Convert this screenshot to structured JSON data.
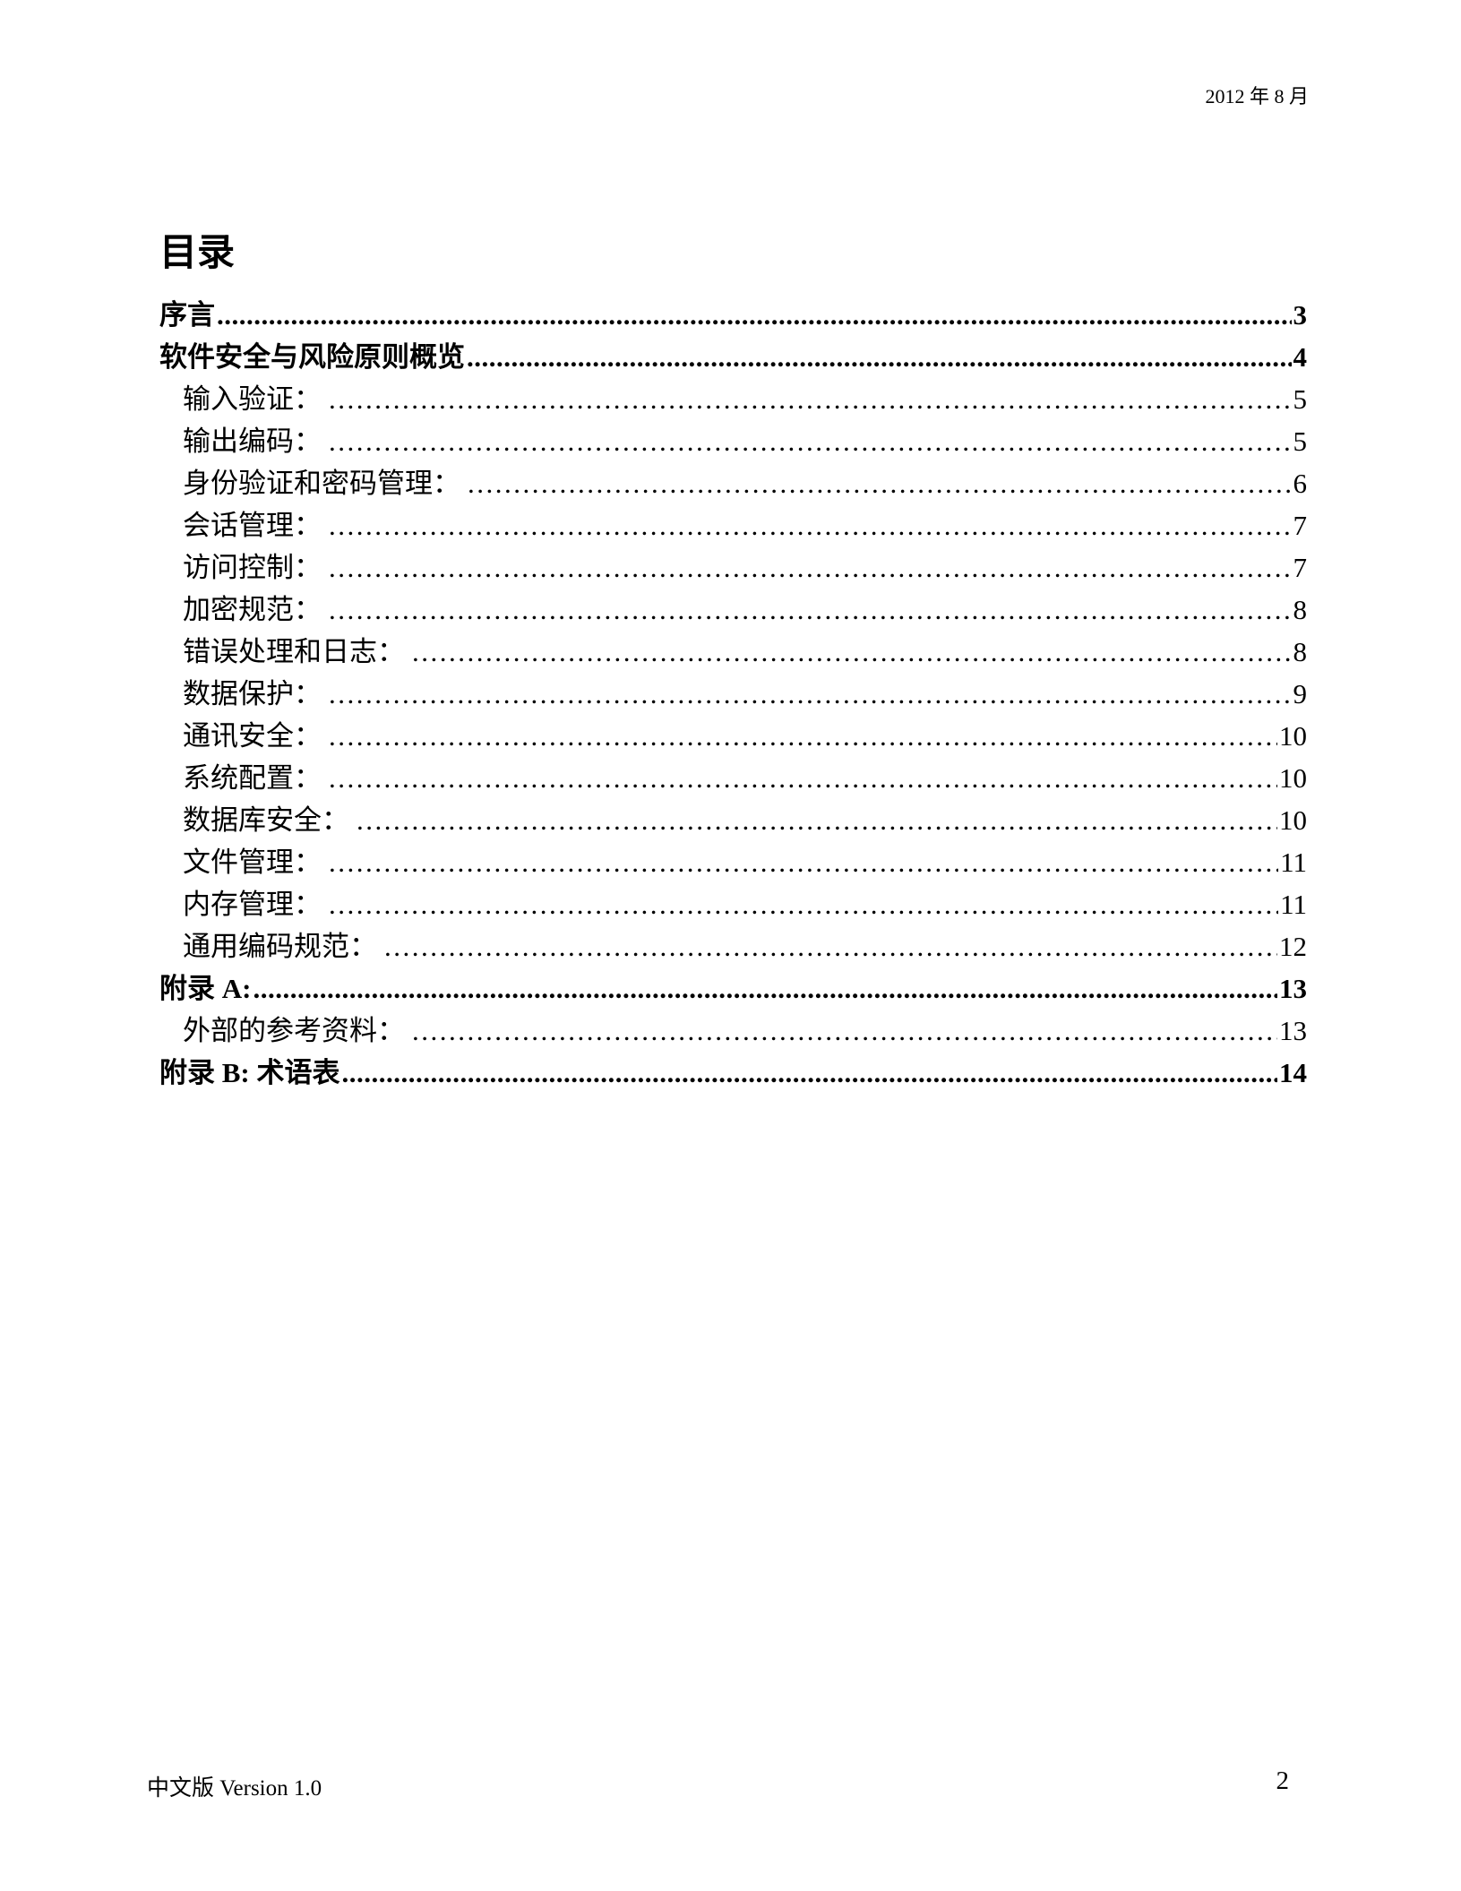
{
  "header": {
    "date": "2012 年 8 月"
  },
  "toc": {
    "title": "目录",
    "entries": [
      {
        "label": "序言",
        "page": "3",
        "level": 0,
        "bold": true
      },
      {
        "label": "软件安全与风险原则概览",
        "page": "4",
        "level": 0,
        "bold": true
      },
      {
        "label": "输入验证：",
        "page": "5",
        "level": 1,
        "bold": false
      },
      {
        "label": "输出编码：",
        "page": "5",
        "level": 1,
        "bold": false
      },
      {
        "label": "身份验证和密码管理：",
        "page": "6",
        "level": 1,
        "bold": false
      },
      {
        "label": "会话管理：",
        "page": "7",
        "level": 1,
        "bold": false
      },
      {
        "label": "访问控制：",
        "page": "7",
        "level": 1,
        "bold": false
      },
      {
        "label": "加密规范：",
        "page": "8",
        "level": 1,
        "bold": false
      },
      {
        "label": "错误处理和日志：",
        "page": "8",
        "level": 1,
        "bold": false
      },
      {
        "label": "数据保护：",
        "page": "9",
        "level": 1,
        "bold": false
      },
      {
        "label": "通讯安全：",
        "page": "10",
        "level": 1,
        "bold": false
      },
      {
        "label": "系统配置：",
        "page": "10",
        "level": 1,
        "bold": false
      },
      {
        "label": "数据库安全：",
        "page": "10",
        "level": 1,
        "bold": false
      },
      {
        "label": "文件管理：",
        "page": "11",
        "level": 1,
        "bold": false
      },
      {
        "label": "内存管理：",
        "page": "11",
        "level": 1,
        "bold": false
      },
      {
        "label": "通用编码规范：",
        "page": "12",
        "level": 1,
        "bold": false
      },
      {
        "label": "附录 A:",
        "page": "13",
        "level": 0,
        "bold": true
      },
      {
        "label": "外部的参考资料：",
        "page": "13",
        "level": 1,
        "bold": false
      },
      {
        "label": "附录 B: 术语表",
        "page": "14",
        "level": 0,
        "bold": true
      }
    ]
  },
  "footer": {
    "version": "中文版 Version 1.0",
    "page_number": "2"
  }
}
